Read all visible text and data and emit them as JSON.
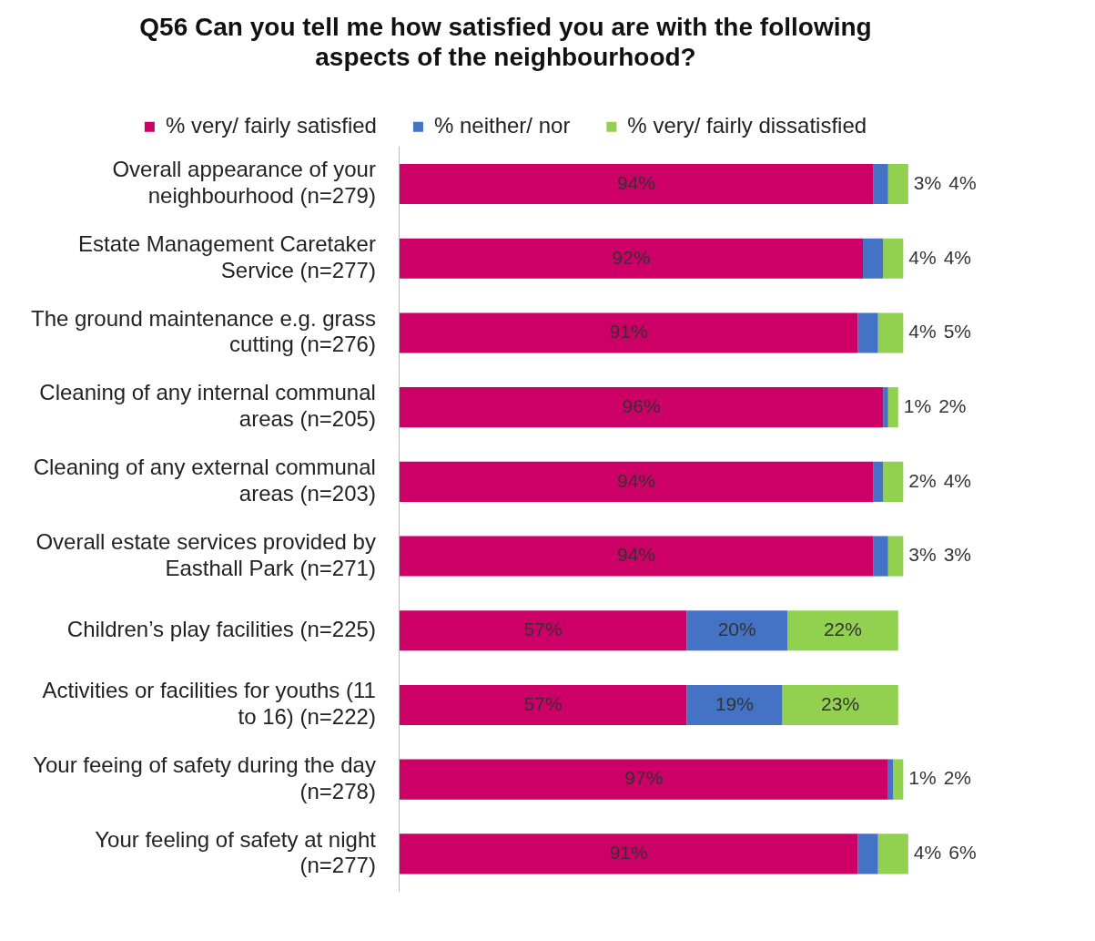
{
  "chart_data": {
    "type": "bar",
    "orientation": "horizontal",
    "stacked": true,
    "title": "Q56 Can you tell me how satisfied you are with the following aspects of the neighbourhood?",
    "categories": [
      "Overall appearance of your neighbourhood (n=279)",
      "Estate Management Caretaker Service (n=277)",
      "The ground maintenance e.g. grass cutting (n=276)",
      "Cleaning of any internal communal areas (n=205)",
      "Cleaning of any external communal areas (n=203)",
      "Overall estate services provided by Easthall Park (n=271)",
      "Children’s play facilities (n=225)",
      "Activities or facilities for youths (11 to 16) (n=222)",
      "Your feeing of safety during the day (n=278)",
      "Your feeling of safety at night (n=277)"
    ],
    "series": [
      {
        "name": "% very/ fairly satisfied",
        "color": "#cc0066",
        "values": [
          94,
          92,
          91,
          96,
          94,
          94,
          57,
          57,
          97,
          91
        ],
        "value_labels": [
          "94%",
          "92%",
          "91%",
          "96%",
          "94%",
          "94%",
          "57%",
          "57%",
          "97%",
          "91%"
        ]
      },
      {
        "name": "% neither/ nor",
        "color": "#4472c4",
        "values": [
          3,
          4,
          4,
          1,
          2,
          3,
          20,
          19,
          1,
          4
        ],
        "value_labels": [
          "3%",
          "4%",
          "4%",
          "1%",
          "2%",
          "3%",
          "20%",
          "19%",
          "1%",
          "4%"
        ]
      },
      {
        "name": "% very/ fairly dissatisfied",
        "color": "#92d050",
        "values": [
          4,
          4,
          5,
          2,
          4,
          3,
          22,
          23,
          2,
          6
        ],
        "value_labels": [
          "4%",
          "4%",
          "5%",
          "2%",
          "4%",
          "3%",
          "22%",
          "23%",
          "2%",
          "6%"
        ]
      }
    ],
    "legend": "top",
    "grid": false,
    "tick_labels": "y"
  }
}
